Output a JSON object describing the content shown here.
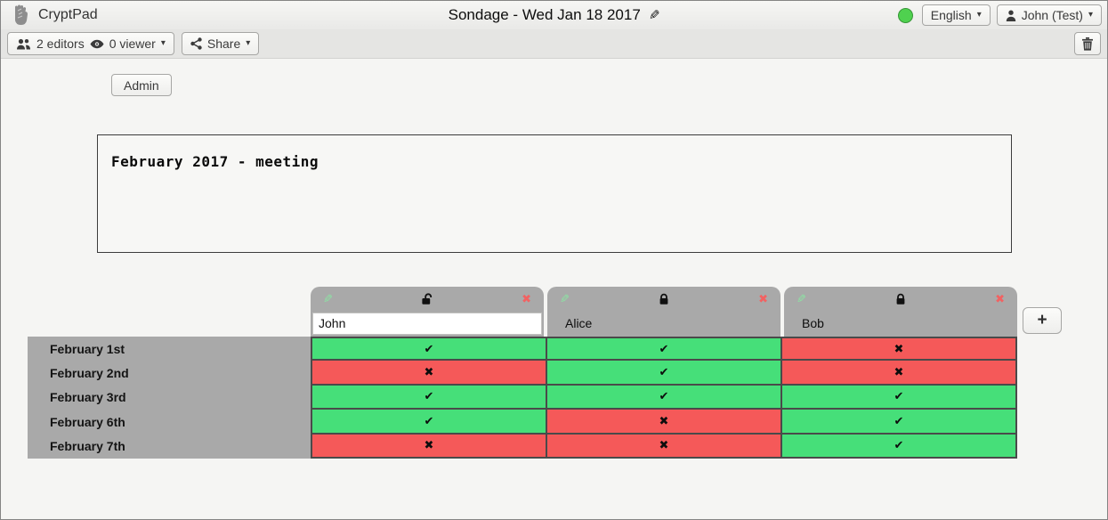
{
  "topbar": {
    "brand": "CryptPad",
    "title": "Sondage - Wed Jan 18 2017",
    "status_color": "#4fd14f",
    "language_button": {
      "label": "English"
    },
    "user_button": {
      "label": "John (Test)"
    }
  },
  "toolbar": {
    "editors_label": "2 editors",
    "viewers_label": "0 viewer",
    "share_label": "Share"
  },
  "admin_button_label": "Admin",
  "description": "February 2017 - meeting",
  "poll": {
    "columns": [
      {
        "name": "John",
        "editable": true,
        "locked": false
      },
      {
        "name": "Alice",
        "editable": false,
        "locked": true
      },
      {
        "name": "Bob",
        "editable": false,
        "locked": true
      }
    ],
    "rows": [
      {
        "label": "February 1st",
        "votes": [
          "yes",
          "yes",
          "no"
        ]
      },
      {
        "label": "February 2nd",
        "votes": [
          "no",
          "yes",
          "no"
        ]
      },
      {
        "label": "February 3rd",
        "votes": [
          "yes",
          "yes",
          "yes"
        ]
      },
      {
        "label": "February 6th",
        "votes": [
          "yes",
          "no",
          "yes"
        ]
      },
      {
        "label": "February 7th",
        "votes": [
          "no",
          "no",
          "yes"
        ]
      }
    ],
    "add_column_label": "+",
    "colors": {
      "yes": "#46df79",
      "no": "#f55959"
    },
    "glyphs": {
      "yes": "✔",
      "no": "✖",
      "caret": "▾",
      "pencil": "✎",
      "remove": "✖"
    }
  }
}
